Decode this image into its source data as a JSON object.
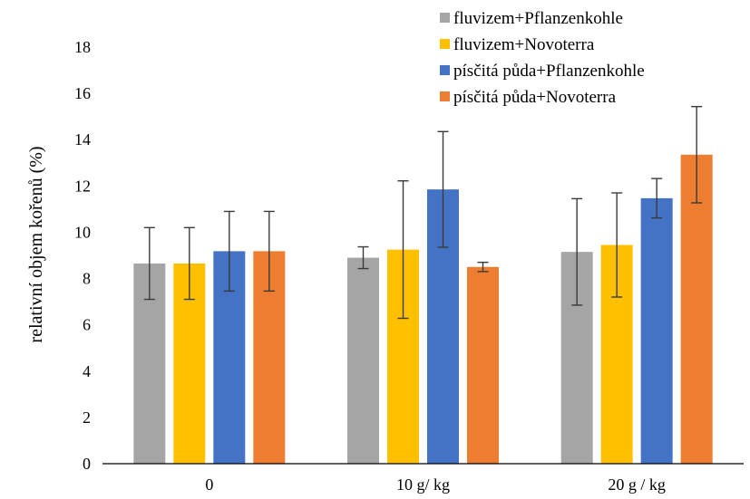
{
  "chart_data": {
    "type": "bar",
    "title": "",
    "xlabel": "",
    "ylabel": "relativní objem kořenů (%)",
    "ylim": [
      0,
      18
    ],
    "yticks": [
      0,
      2,
      4,
      6,
      8,
      10,
      12,
      14,
      16,
      18
    ],
    "categories": [
      "0",
      "10 g/ kg",
      "20 g / kg"
    ],
    "legend_position": "top-right",
    "grid": false,
    "series": [
      {
        "name": "fluvizem+Pflanzenkohle",
        "color": "#a5a5a5",
        "values": [
          8.65,
          8.9,
          9.15
        ],
        "errors": [
          1.55,
          0.47,
          2.3
        ]
      },
      {
        "name": "fluvizem+Novoterra",
        "color": "#ffc000",
        "values": [
          8.65,
          9.25,
          9.45
        ],
        "errors": [
          1.55,
          2.97,
          2.25
        ]
      },
      {
        "name": "písčitá půda+Pflanzenkohle",
        "color": "#4472c4",
        "values": [
          9.18,
          11.85,
          11.47
        ],
        "errors": [
          1.72,
          2.5,
          0.85
        ]
      },
      {
        "name": "písčitá půda+Novoterra",
        "color": "#ed7d31",
        "values": [
          9.18,
          8.5,
          13.35
        ],
        "errors": [
          1.72,
          0.2,
          2.08
        ]
      }
    ]
  }
}
